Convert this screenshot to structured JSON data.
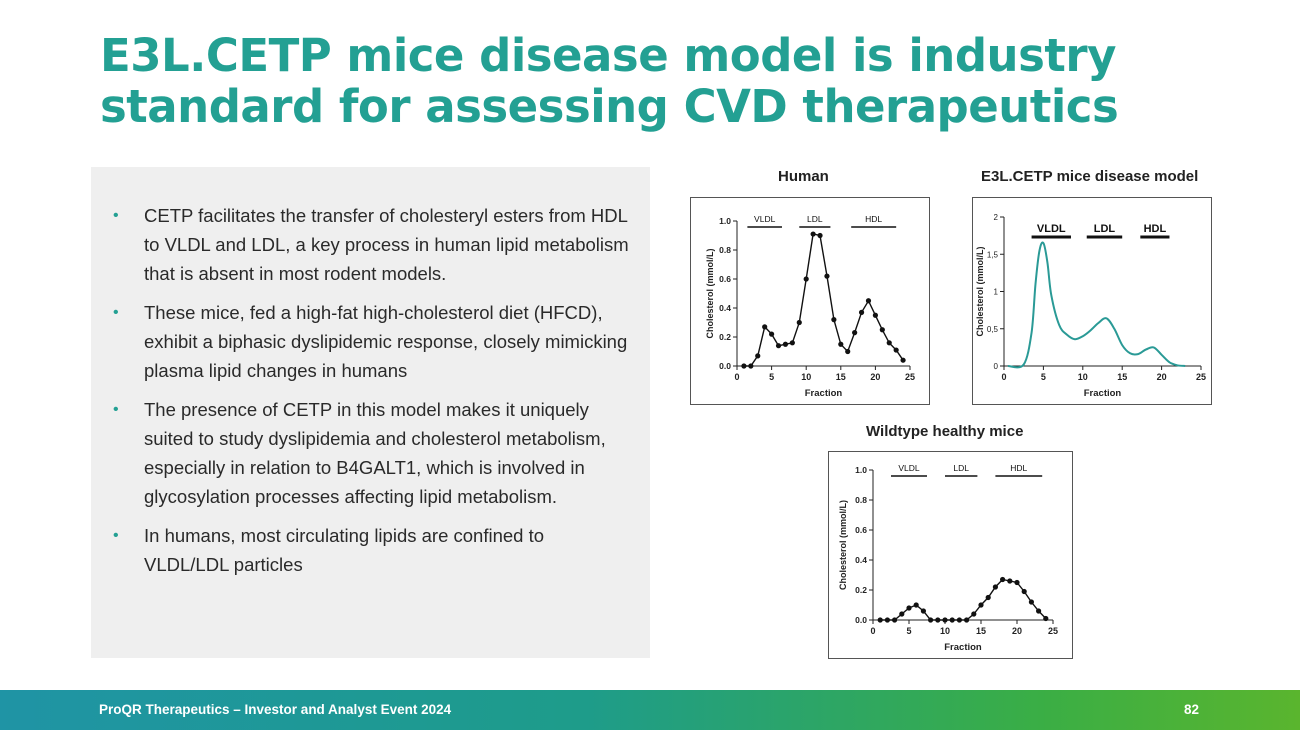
{
  "slide": {
    "title_line1": "E3L.CETP mice disease model is industry",
    "title_line2": "standard for assessing CVD therapeutics",
    "accent": "#23a093",
    "bullets": [
      "CETP facilitates the transfer of cholesteryl esters from HDL to VLDL and LDL, a key process in human lipid metabolism that is absent in most rodent models.",
      "These mice, fed a high-fat high-cholesterol diet (HFCD), exhibit a biphasic dyslipidemic response, closely mimicking plasma lipid changes in humans",
      "The presence of CETP in this model makes it uniquely suited to study dyslipidemia and cholesterol metabolism, especially in relation to B4GALT1, which is involved in glycosylation processes affecting lipid metabolism.",
      "In humans, most circulating lipids are confined to VLDL/LDL particles"
    ],
    "bullet_glyph": "•"
  },
  "footer": {
    "text": "ProQR Therapeutics – Investor and Analyst Event 2024",
    "page": "82"
  },
  "chart_data": [
    {
      "id": "human",
      "type": "line",
      "title": "Human",
      "xlabel": "Fraction",
      "ylabel": "Cholesterol (mmol/L)",
      "xlim": [
        0,
        25
      ],
      "ylim": [
        0,
        1.0
      ],
      "xticks": [
        0,
        5,
        10,
        15,
        20,
        25
      ],
      "xtick_labels": [
        "0",
        "5",
        "10",
        "15",
        "20",
        "25"
      ],
      "yticks": [
        0,
        0.2,
        0.4,
        0.6,
        0.8,
        1.0
      ],
      "ytick_labels": [
        "0.0",
        "0.2",
        "0.4",
        "0.6",
        "0.8",
        "1.0"
      ],
      "markers": true,
      "color": "#111111",
      "x": [
        1,
        2,
        3,
        4,
        5,
        6,
        7,
        8,
        9,
        10,
        11,
        12,
        13,
        14,
        15,
        16,
        17,
        18,
        19,
        20,
        21,
        22,
        23,
        24
      ],
      "y": [
        0.0,
        0.0,
        0.07,
        0.27,
        0.22,
        0.14,
        0.15,
        0.16,
        0.3,
        0.6,
        0.91,
        0.9,
        0.62,
        0.32,
        0.15,
        0.1,
        0.23,
        0.37,
        0.45,
        0.35,
        0.25,
        0.16,
        0.11,
        0.04
      ],
      "bands": [
        {
          "label": "VLDL",
          "from": 1.5,
          "to": 6.5
        },
        {
          "label": "LDL",
          "from": 9,
          "to": 13.5
        },
        {
          "label": "HDL",
          "from": 16.5,
          "to": 23
        }
      ]
    },
    {
      "id": "e3l",
      "type": "line",
      "title": "E3L.CETP mice disease model",
      "xlabel": "Fraction",
      "ylabel": "Cholesterol (mmol/L)",
      "xlim": [
        0,
        25
      ],
      "ylim": [
        0,
        2
      ],
      "xticks": [
        0,
        5,
        10,
        15,
        20,
        25
      ],
      "xtick_labels": [
        "0",
        "5",
        "10",
        "15",
        "20",
        "25"
      ],
      "yticks": [
        0,
        0.5,
        1,
        1.5,
        2
      ],
      "ytick_labels": [
        "0",
        "0,5",
        "1",
        "1,5",
        "2"
      ],
      "markers": false,
      "color": "#2a9a96",
      "x": [
        0.5,
        2.5,
        3.5,
        4.0,
        4.5,
        5.0,
        5.5,
        6.0,
        7.0,
        8.0,
        9.0,
        10.0,
        11.0,
        12.0,
        13.0,
        14.0,
        15.0,
        16.0,
        17.0,
        18.0,
        19.0,
        20.0,
        21.0,
        22.0,
        23.0
      ],
      "y": [
        0.0,
        0.02,
        0.45,
        1.1,
        1.55,
        1.65,
        1.4,
        0.95,
        0.55,
        0.42,
        0.36,
        0.4,
        0.48,
        0.58,
        0.64,
        0.5,
        0.28,
        0.17,
        0.16,
        0.22,
        0.25,
        0.15,
        0.05,
        0.01,
        0.0
      ],
      "bands": [
        {
          "label": "VLDL",
          "from": 3.5,
          "to": 8.5
        },
        {
          "label": "LDL",
          "from": 10.5,
          "to": 15
        },
        {
          "label": "HDL",
          "from": 17.3,
          "to": 21
        }
      ]
    },
    {
      "id": "wildtype",
      "type": "line",
      "title": "Wildtype healthy mice",
      "xlabel": "Fraction",
      "ylabel": "Cholesterol (mmol/L)",
      "xlim": [
        0,
        25
      ],
      "ylim": [
        0,
        1.0
      ],
      "xticks": [
        0,
        5,
        10,
        15,
        20,
        25
      ],
      "xtick_labels": [
        "0",
        "5",
        "10",
        "15",
        "20",
        "25"
      ],
      "yticks": [
        0,
        0.2,
        0.4,
        0.6,
        0.8,
        1.0
      ],
      "ytick_labels": [
        "0.0",
        "0.2",
        "0.4",
        "0.6",
        "0.8",
        "1.0"
      ],
      "markers": true,
      "color": "#111111",
      "x": [
        1,
        2,
        3,
        4,
        5,
        6,
        7,
        8,
        9,
        10,
        11,
        12,
        13,
        14,
        15,
        16,
        17,
        18,
        19,
        20,
        21,
        22,
        23,
        24
      ],
      "y": [
        0.0,
        0.0,
        0.0,
        0.04,
        0.08,
        0.1,
        0.06,
        0.0,
        0.0,
        0.0,
        0.0,
        0.0,
        0.0,
        0.04,
        0.1,
        0.15,
        0.22,
        0.27,
        0.26,
        0.25,
        0.19,
        0.12,
        0.06,
        0.01
      ],
      "bands": [
        {
          "label": "VLDL",
          "from": 2.5,
          "to": 7.5
        },
        {
          "label": "LDL",
          "from": 10,
          "to": 14.5
        },
        {
          "label": "HDL",
          "from": 17,
          "to": 23.5
        }
      ]
    }
  ]
}
